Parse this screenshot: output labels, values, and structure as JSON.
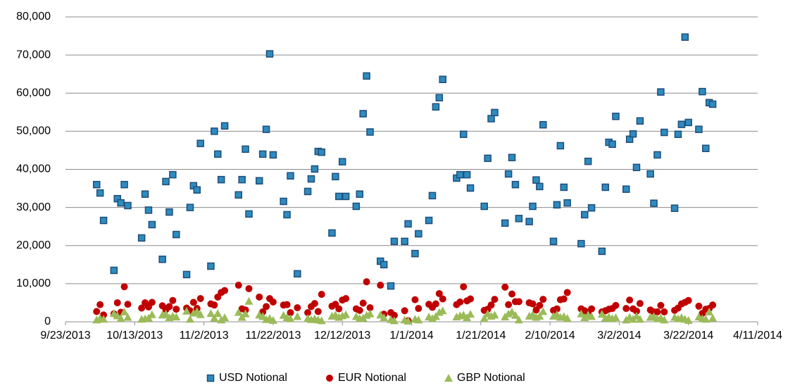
{
  "chart_data": {
    "type": "scatter",
    "x": [
      "10/2/2013",
      "10/3/2013",
      "10/4/2013",
      "10/7/2013",
      "10/8/2013",
      "10/9/2013",
      "10/10/2013",
      "10/11/2013",
      "10/15/2013",
      "10/16/2013",
      "10/17/2013",
      "10/18/2013",
      "10/21/2013",
      "10/22/2013",
      "10/23/2013",
      "10/24/2013",
      "10/25/2013",
      "10/28/2013",
      "10/29/2013",
      "10/30/2013",
      "10/31/2013",
      "11/1/2013",
      "11/4/2013",
      "11/5/2013",
      "11/6/2013",
      "11/7/2013",
      "11/8/2013",
      "11/12/2013",
      "11/13/2013",
      "11/14/2013",
      "11/15/2013",
      "11/18/2013",
      "11/19/2013",
      "11/20/2013",
      "11/21/2013",
      "11/22/2013",
      "11/25/2013",
      "11/26/2013",
      "11/27/2013",
      "11/29/2013",
      "12/2/2013",
      "12/3/2013",
      "12/4/2013",
      "12/5/2013",
      "12/6/2013",
      "12/9/2013",
      "12/10/2013",
      "12/11/2013",
      "12/12/2013",
      "12/13/2013",
      "12/16/2013",
      "12/17/2013",
      "12/18/2013",
      "12/19/2013",
      "12/20/2013",
      "12/23/2013",
      "12/24/2013",
      "12/26/2013",
      "12/27/2013",
      "12/30/2013",
      "12/31/2013",
      "1/2/2014",
      "1/3/2014",
      "1/6/2014",
      "1/7/2014",
      "1/8/2014",
      "1/9/2014",
      "1/10/2014",
      "1/14/2014",
      "1/15/2014",
      "1/16/2014",
      "1/17/2014",
      "1/18/2014",
      "1/22/2014",
      "1/23/2014",
      "1/24/2014",
      "1/25/2014",
      "1/28/2014",
      "1/29/2014",
      "1/30/2014",
      "1/31/2014",
      "2/1/2014",
      "2/4/2014",
      "2/5/2014",
      "2/6/2014",
      "2/7/2014",
      "2/8/2014",
      "2/11/2014",
      "2/12/2014",
      "2/13/2014",
      "2/14/2014",
      "2/15/2014",
      "2/19/2014",
      "2/20/2014",
      "2/21/2014",
      "2/22/2014",
      "2/25/2014",
      "2/26/2014",
      "2/27/2014",
      "2/28/2014",
      "3/1/2014",
      "3/4/2014",
      "3/5/2014",
      "3/6/2014",
      "3/7/2014",
      "3/8/2014",
      "3/11/2014",
      "3/12/2014",
      "3/13/2014",
      "3/14/2014",
      "3/15/2014",
      "3/18/2014",
      "3/19/2014",
      "3/20/2014",
      "3/21/2014",
      "3/22/2014",
      "3/25/2014",
      "3/26/2014",
      "3/27/2014",
      "3/28/2014",
      "3/29/2014"
    ],
    "series": [
      {
        "name": "USD Notional",
        "color": "#2e8bc0",
        "marker": "square",
        "values": [
          36000,
          33800,
          26600,
          13500,
          32300,
          31200,
          36000,
          30500,
          22000,
          33500,
          29300,
          25500,
          16400,
          36800,
          28800,
          38600,
          22900,
          12400,
          30000,
          35700,
          34600,
          46800,
          14600,
          50000,
          44000,
          37300,
          51400,
          33300,
          37300,
          45300,
          28300,
          37000,
          44000,
          50500,
          70300,
          43800,
          31600,
          28100,
          38300,
          12600,
          34200,
          37500,
          40100,
          44700,
          44500,
          23300,
          38100,
          32900,
          42000,
          32900,
          30300,
          33500,
          54600,
          64500,
          49800,
          15900,
          15000,
          9400,
          21100,
          21100,
          25700,
          17900,
          23100,
          26600,
          33100,
          56400,
          58800,
          63600,
          37700,
          38600,
          49200,
          38600,
          35100,
          30300,
          42900,
          53300,
          54900,
          25900,
          38800,
          43100,
          36000,
          27100,
          26300,
          30300,
          37200,
          35500,
          51700,
          21100,
          30700,
          46200,
          35300,
          31200,
          20500,
          28100,
          42100,
          29900,
          18500,
          35300,
          47100,
          46600,
          53900,
          34800,
          47900,
          49300,
          40500,
          52700,
          38800,
          31100,
          43800,
          60300,
          49700,
          29800,
          49200,
          51800,
          74700,
          52300,
          50500,
          60400,
          45500,
          57500,
          57100
        ]
      },
      {
        "name": "EUR Notional",
        "color": "#c00000",
        "marker": "circle",
        "values": [
          2700,
          4500,
          1800,
          2100,
          5000,
          2500,
          9200,
          4600,
          3600,
          5000,
          3900,
          5100,
          4200,
          3200,
          4000,
          5600,
          3300,
          3600,
          2900,
          5100,
          3500,
          6100,
          4700,
          4400,
          6500,
          7700,
          8200,
          9600,
          3400,
          3100,
          8700,
          6500,
          2600,
          4000,
          6100,
          5200,
          4400,
          4500,
          2400,
          3700,
          2400,
          4000,
          4800,
          2700,
          7200,
          4100,
          4600,
          3400,
          5700,
          6100,
          3400,
          3000,
          4900,
          10500,
          3700,
          9600,
          2000,
          2400,
          1700,
          2900,
          300,
          5800,
          3500,
          4600,
          3800,
          4700,
          7400,
          6000,
          4500,
          5200,
          9200,
          5500,
          6000,
          3000,
          3300,
          4400,
          5900,
          9100,
          4500,
          7300,
          5300,
          5300,
          5000,
          4700,
          3100,
          4300,
          5900,
          3000,
          3400,
          5800,
          6000,
          7700,
          3400,
          2900,
          2500,
          3400,
          2600,
          2900,
          3300,
          3500,
          4300,
          3500,
          5700,
          3400,
          2800,
          4800,
          3100,
          2600,
          2600,
          4300,
          2600,
          3000,
          3600,
          4700,
          5100,
          5600,
          4100,
          2200,
          3300,
          3500,
          4400
        ]
      },
      {
        "name": "GBP Notional",
        "color": "#9bbb59",
        "marker": "triangle",
        "values": [
          500,
          900,
          700,
          2200,
          1600,
          900,
          2600,
          1200,
          700,
          800,
          1000,
          1900,
          1800,
          2000,
          1100,
          1500,
          1300,
          2800,
          700,
          2300,
          2700,
          1900,
          2200,
          1000,
          2200,
          500,
          1100,
          2500,
          1200,
          2100,
          5400,
          1800,
          1400,
          600,
          900,
          400,
          1700,
          1100,
          800,
          1400,
          900,
          600,
          800,
          500,
          300,
          1500,
          1800,
          1200,
          1600,
          1900,
          1400,
          900,
          1000,
          1700,
          2100,
          1800,
          1100,
          600,
          300,
          500,
          200,
          700,
          500,
          1300,
          900,
          1400,
          2500,
          2900,
          1300,
          1600,
          1800,
          1100,
          2000,
          900,
          2100,
          1500,
          1800,
          1300,
          2100,
          2600,
          1700,
          500,
          1500,
          1900,
          1200,
          1500,
          2700,
          1500,
          1900,
          1200,
          1400,
          900,
          2100,
          1100,
          1800,
          1400,
          2000,
          1000,
          1300,
          900,
          1100,
          500,
          1200,
          700,
          1500,
          700,
          1200,
          1400,
          800,
          1000,
          500,
          1200,
          800,
          1100,
          700,
          400,
          1300,
          800,
          700,
          2600,
          1000
        ]
      }
    ],
    "xlim": [
      "9/23/2013",
      "4/11/2014"
    ],
    "xticks": [
      "9/23/2013",
      "10/13/2013",
      "11/2/2013",
      "11/22/2013",
      "12/12/2013",
      "1/1/2014",
      "1/21/2014",
      "2/10/2014",
      "3/2/2014",
      "3/22/2014",
      "4/11/2014"
    ],
    "ylim": [
      0,
      80000
    ],
    "yticks": [
      0,
      {
        "value": 10000,
        "label": "10,000"
      },
      {
        "value": 20000,
        "label": "20,000"
      },
      {
        "value": 30000,
        "label": "30,000"
      },
      {
        "value": 40000,
        "label": "40,000"
      },
      {
        "value": 50000,
        "label": "50,000"
      },
      {
        "value": 60000,
        "label": "60,000"
      },
      {
        "value": 70000,
        "label": "70,000"
      },
      {
        "value": 80000,
        "label": "80,000"
      }
    ],
    "grid": true,
    "legend": "bottom"
  }
}
